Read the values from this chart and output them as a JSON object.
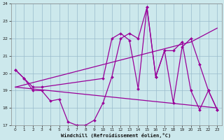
{
  "xlabel": "Windchill (Refroidissement éolien,°C)",
  "bg_color": "#cce8ec",
  "line_color": "#990099",
  "grid_color": "#99bbcc",
  "series1_x": [
    0,
    1,
    2,
    3,
    4,
    5,
    6,
    7,
    8,
    9,
    10,
    11,
    12,
    13,
    14,
    15,
    16,
    17,
    18,
    19,
    20,
    21,
    22,
    23
  ],
  "series1_y": [
    20.2,
    19.7,
    19.0,
    19.0,
    18.4,
    18.5,
    17.2,
    17.0,
    17.0,
    17.3,
    18.3,
    19.8,
    22.0,
    22.3,
    22.0,
    23.8,
    19.8,
    21.3,
    21.3,
    21.8,
    19.0,
    17.9,
    19.0,
    17.9
  ],
  "series2_x": [
    0,
    1,
    2,
    3,
    10,
    11,
    12,
    13,
    14,
    15,
    16,
    17,
    18,
    19,
    20,
    21,
    22,
    23
  ],
  "series2_y": [
    20.2,
    19.7,
    19.2,
    19.2,
    19.7,
    22.0,
    22.3,
    21.9,
    19.1,
    23.8,
    19.8,
    21.3,
    18.3,
    21.5,
    22.0,
    20.5,
    19.0,
    17.9
  ],
  "series3_x": [
    0,
    23
  ],
  "series3_y": [
    19.2,
    18.0
  ],
  "series4_x": [
    0,
    20,
    23
  ],
  "series4_y": [
    19.2,
    21.8,
    22.6
  ],
  "ylim": [
    17,
    24
  ],
  "xlim": [
    -0.5,
    23.5
  ],
  "yticks": [
    17,
    18,
    19,
    20,
    21,
    22,
    23,
    24
  ],
  "xticks": [
    0,
    1,
    2,
    3,
    4,
    5,
    6,
    7,
    8,
    9,
    10,
    11,
    12,
    13,
    14,
    15,
    16,
    17,
    18,
    19,
    20,
    21,
    22,
    23
  ]
}
